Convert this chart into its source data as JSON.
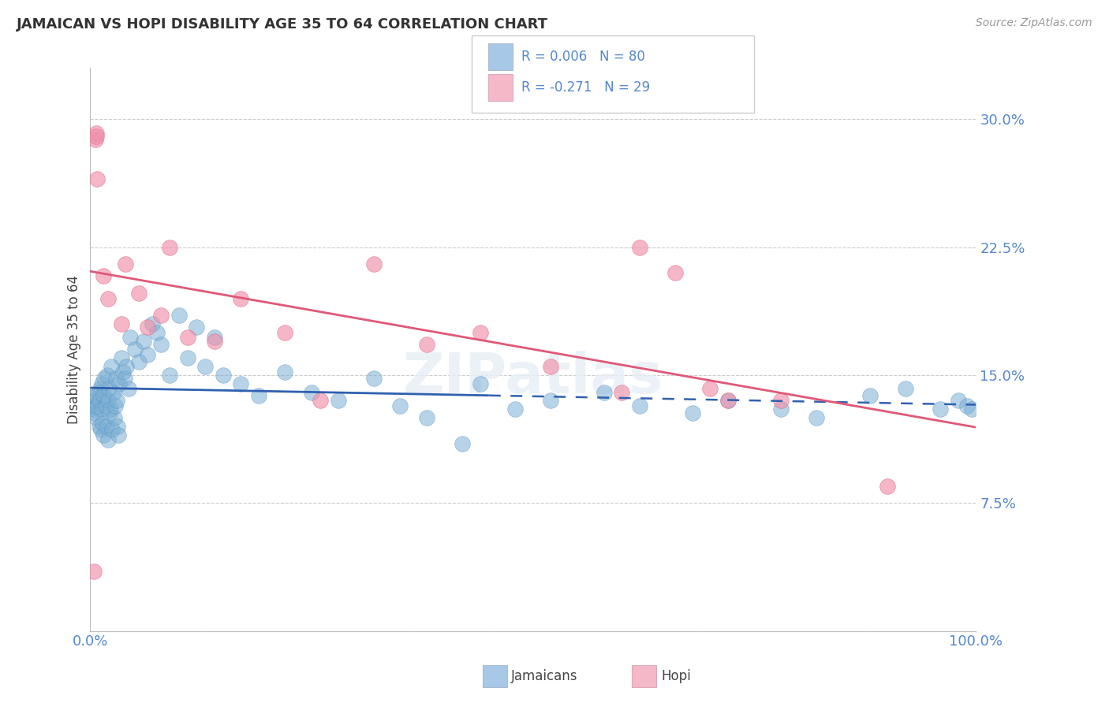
{
  "title": "JAMAICAN VS HOPI DISABILITY AGE 35 TO 64 CORRELATION CHART",
  "source": "Source: ZipAtlas.com",
  "ylabel": "Disability Age 35 to 64",
  "xlim": [
    0.0,
    100.0
  ],
  "ylim": [
    0.0,
    33.0
  ],
  "yticks": [
    0.0,
    7.5,
    15.0,
    22.5,
    30.0
  ],
  "yticklabels": [
    "",
    "7.5%",
    "15.0%",
    "22.5%",
    "30.0%"
  ],
  "jamaican_color": "#7bafd4",
  "jamaican_edge": "#5a90c0",
  "hopi_color": "#f090aa",
  "hopi_edge": "#e06080",
  "trendline_jamaican_color": "#3060b0",
  "trendline_hopi_color": "#e05878",
  "background_color": "#ffffff",
  "grid_color": "#cccccc",
  "legend_blue_fill": "#a8c8e8",
  "legend_pink_fill": "#f5b8c8",
  "tick_color": "#5588cc",
  "jamaican_x": [
    0.3,
    0.4,
    0.5,
    0.5,
    0.6,
    0.7,
    0.8,
    0.9,
    1.0,
    1.0,
    1.1,
    1.2,
    1.3,
    1.3,
    1.4,
    1.5,
    1.5,
    1.6,
    1.7,
    1.8,
    1.9,
    2.0,
    2.0,
    2.1,
    2.2,
    2.3,
    2.4,
    2.5,
    2.6,
    2.7,
    2.8,
    2.9,
    3.0,
    3.1,
    3.2,
    3.3,
    3.5,
    3.7,
    3.9,
    4.1,
    4.3,
    4.5,
    5.0,
    5.5,
    6.0,
    6.5,
    7.0,
    7.5,
    8.0,
    9.0,
    10.0,
    11.0,
    12.0,
    13.0,
    14.0,
    15.0,
    17.0,
    19.0,
    22.0,
    25.0,
    28.0,
    32.0,
    35.0,
    38.0,
    42.0,
    44.0,
    48.0,
    52.0,
    58.0,
    62.0,
    68.0,
    72.0,
    78.0,
    82.0,
    88.0,
    92.0,
    96.0,
    98.0,
    99.0,
    99.5
  ],
  "jamaican_y": [
    13.2,
    13.0,
    12.8,
    13.5,
    13.8,
    12.5,
    13.2,
    14.0,
    12.0,
    13.5,
    14.2,
    11.8,
    13.0,
    14.5,
    12.2,
    13.8,
    11.5,
    14.8,
    13.2,
    12.0,
    15.0,
    13.5,
    11.2,
    14.2,
    12.8,
    13.0,
    15.5,
    11.8,
    14.0,
    12.5,
    13.2,
    14.8,
    13.5,
    12.0,
    11.5,
    14.5,
    16.0,
    15.2,
    14.8,
    15.5,
    14.2,
    17.2,
    16.5,
    15.8,
    17.0,
    16.2,
    18.0,
    17.5,
    16.8,
    15.0,
    18.5,
    16.0,
    17.8,
    15.5,
    17.2,
    15.0,
    14.5,
    13.8,
    15.2,
    14.0,
    13.5,
    14.8,
    13.2,
    12.5,
    11.0,
    14.5,
    13.0,
    13.5,
    14.0,
    13.2,
    12.8,
    13.5,
    13.0,
    12.5,
    13.8,
    14.2,
    13.0,
    13.5,
    13.2,
    13.0
  ],
  "hopi_x": [
    0.4,
    0.6,
    0.7,
    0.7,
    0.8,
    1.5,
    2.0,
    3.5,
    4.0,
    5.5,
    6.5,
    8.0,
    9.0,
    11.0,
    14.0,
    17.0,
    22.0,
    26.0,
    32.0,
    38.0,
    44.0,
    52.0,
    60.0,
    62.0,
    66.0,
    70.0,
    72.0,
    78.0,
    90.0
  ],
  "hopi_y": [
    3.5,
    28.8,
    29.2,
    29.0,
    26.5,
    20.8,
    19.5,
    18.0,
    21.5,
    19.8,
    17.8,
    18.5,
    22.5,
    17.2,
    17.0,
    19.5,
    17.5,
    13.5,
    21.5,
    16.8,
    17.5,
    15.5,
    14.0,
    22.5,
    21.0,
    14.2,
    13.5,
    13.5,
    8.5
  ]
}
